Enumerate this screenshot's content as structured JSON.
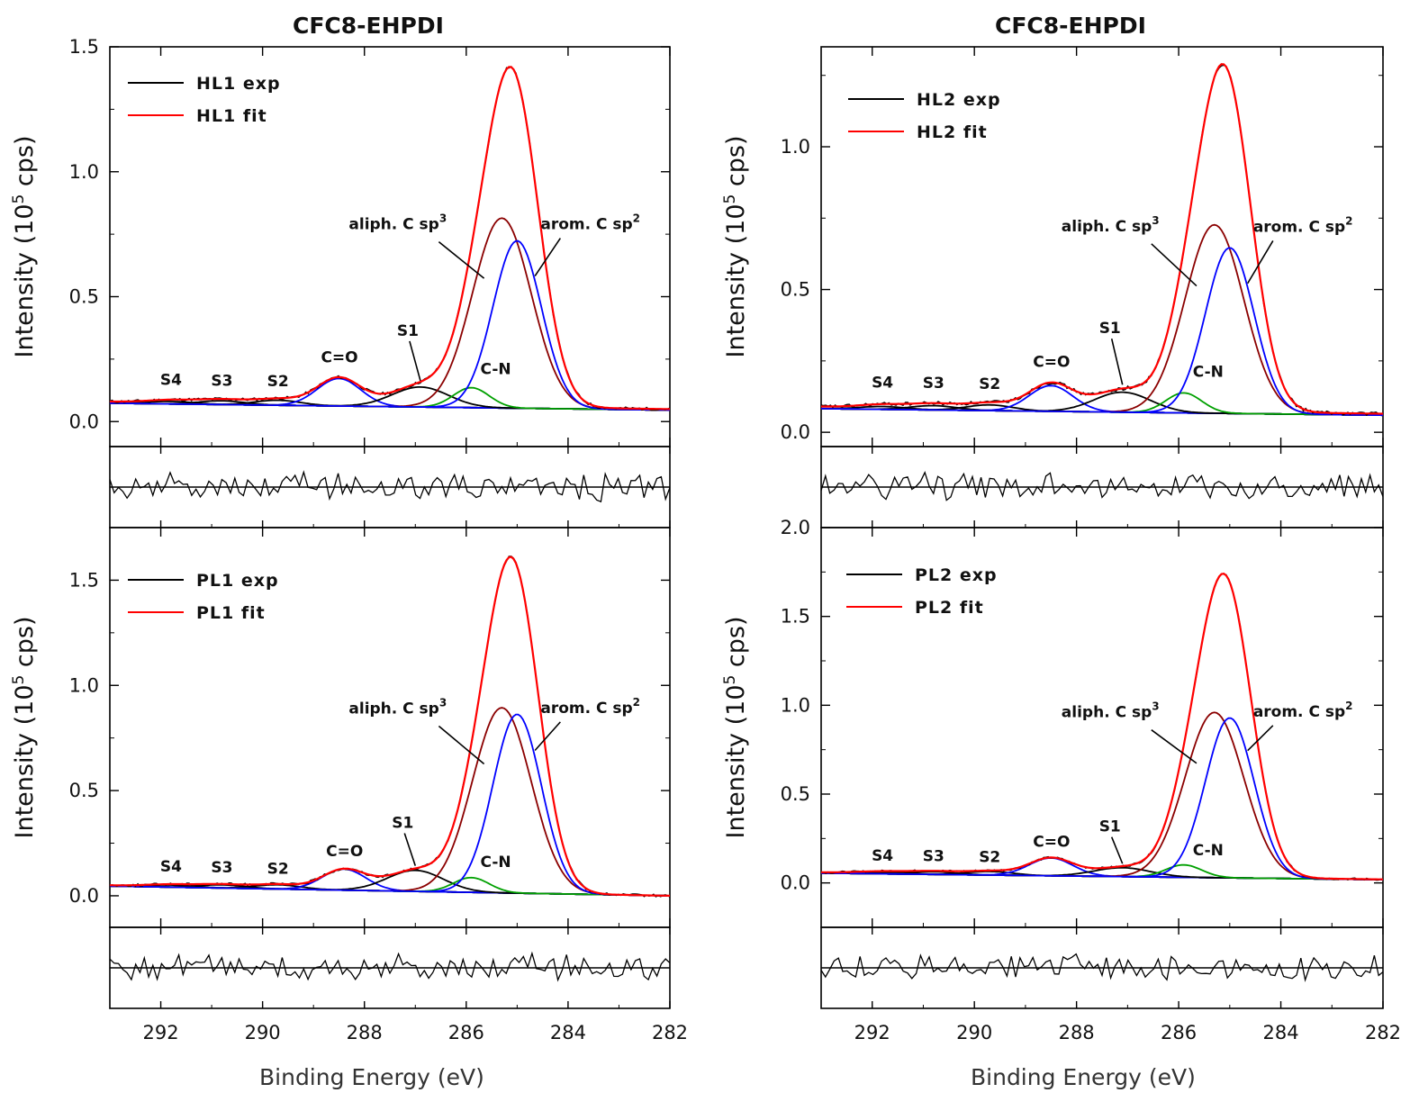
{
  "figure": {
    "titles": [
      "CFC8-EHPDI",
      "CFC8-EHPDI"
    ],
    "xlabel": "Binding Energy (eV)"
  },
  "colors": {
    "exp": "#000000",
    "fit": "#ff0000",
    "aliph": "#8b0000",
    "arom": "#0000ff",
    "cn": "#00a000",
    "minor": "#000000",
    "co": "#0000ff"
  },
  "chart_data": [
    {
      "type": "line",
      "id": "HL1",
      "ylabel": "Intensity (10^5 cps)",
      "xlim": [
        293,
        282
      ],
      "ylim": [
        -0.1,
        1.5
      ],
      "yticks": [
        0.0,
        0.5,
        1.0,
        1.5
      ],
      "xticks": [
        292,
        290,
        288,
        286,
        284,
        282
      ],
      "legend": [
        {
          "label": "HL1 exp",
          "color": "#000000"
        },
        {
          "label": "HL1 fit",
          "color": "#ff0000"
        }
      ],
      "baseline": {
        "start": 0.08,
        "end": 0.05
      },
      "peaks": [
        {
          "name": "S4",
          "label": "S4",
          "center": 291.8,
          "height": 0.01,
          "width": 0.9
        },
        {
          "name": "S3",
          "label": "S3",
          "center": 290.8,
          "height": 0.015,
          "width": 0.9
        },
        {
          "name": "S2",
          "label": "S2",
          "center": 289.7,
          "height": 0.02,
          "width": 0.9
        },
        {
          "name": "C=O",
          "label": "C=O",
          "center": 288.5,
          "height": 0.11,
          "width": 0.85
        },
        {
          "name": "S1",
          "label": "S1",
          "center": 286.9,
          "height": 0.08,
          "width": 1.1
        },
        {
          "name": "C-N",
          "label": "C-N",
          "center": 285.9,
          "height": 0.08,
          "width": 0.7
        },
        {
          "name": "aliph",
          "label": "aliph. C sp3",
          "center": 285.3,
          "height": 0.76,
          "width": 1.15
        },
        {
          "name": "arom",
          "label": "arom. C sp2",
          "center": 285.0,
          "height": 0.67,
          "width": 0.95
        }
      ],
      "fit_peak": 1.42,
      "residual_range": [
        -0.5,
        0.5
      ]
    },
    {
      "type": "line",
      "id": "HL2",
      "ylabel": "Intensity (10^5 cps)",
      "xlim": [
        293,
        282
      ],
      "ylim": [
        -0.05,
        1.35
      ],
      "yticks": [
        0.0,
        0.5,
        1.0
      ],
      "xticks": [
        292,
        290,
        288,
        286,
        284,
        282
      ],
      "legend": [
        {
          "label": "HL2 exp",
          "color": "#000000"
        },
        {
          "label": "HL2 fit",
          "color": "#ff0000"
        }
      ],
      "baseline": {
        "start": 0.09,
        "end": 0.065
      },
      "peaks": [
        {
          "name": "S4",
          "label": "S4",
          "center": 291.8,
          "height": 0.01,
          "width": 0.9
        },
        {
          "name": "S3",
          "label": "S3",
          "center": 290.8,
          "height": 0.015,
          "width": 0.9
        },
        {
          "name": "S2",
          "label": "S2",
          "center": 289.7,
          "height": 0.02,
          "width": 0.9
        },
        {
          "name": "C=O",
          "label": "C=O",
          "center": 288.5,
          "height": 0.09,
          "width": 0.85
        },
        {
          "name": "S1",
          "label": "S1",
          "center": 287.1,
          "height": 0.07,
          "width": 1.1
        },
        {
          "name": "C-N",
          "label": "C-N",
          "center": 285.9,
          "height": 0.07,
          "width": 0.7
        },
        {
          "name": "aliph",
          "label": "aliph. C sp3",
          "center": 285.3,
          "height": 0.66,
          "width": 1.15
        },
        {
          "name": "arom",
          "label": "arom. C sp2",
          "center": 285.0,
          "height": 0.58,
          "width": 0.95
        }
      ],
      "fit_peak": 1.29,
      "residual_range": [
        -0.5,
        0.5
      ]
    },
    {
      "type": "line",
      "id": "PL1",
      "ylabel": "Intensity (10^5 cps)",
      "xlim": [
        293,
        282
      ],
      "ylim": [
        -0.15,
        1.75
      ],
      "yticks": [
        0.0,
        0.5,
        1.0,
        1.5
      ],
      "xticks": [
        292,
        290,
        288,
        286,
        284,
        282
      ],
      "legend": [
        {
          "label": "PL1 exp",
          "color": "#000000"
        },
        {
          "label": "PL1 fit",
          "color": "#ff0000"
        }
      ],
      "baseline": {
        "start": 0.05,
        "end": 0.0
      },
      "peaks": [
        {
          "name": "S4",
          "label": "S4",
          "center": 291.8,
          "height": 0.01,
          "width": 0.9
        },
        {
          "name": "S3",
          "label": "S3",
          "center": 290.8,
          "height": 0.015,
          "width": 0.9
        },
        {
          "name": "S2",
          "label": "S2",
          "center": 289.7,
          "height": 0.02,
          "width": 0.9
        },
        {
          "name": "C=O",
          "label": "C=O",
          "center": 288.4,
          "height": 0.1,
          "width": 0.85
        },
        {
          "name": "S1",
          "label": "S1",
          "center": 287.0,
          "height": 0.1,
          "width": 1.1
        },
        {
          "name": "C-N",
          "label": "C-N",
          "center": 285.9,
          "height": 0.07,
          "width": 0.7
        },
        {
          "name": "aliph",
          "label": "aliph. C sp3",
          "center": 285.3,
          "height": 0.88,
          "width": 1.15
        },
        {
          "name": "arom",
          "label": "arom. C sp2",
          "center": 285.0,
          "height": 0.85,
          "width": 0.95
        }
      ],
      "fit_peak": 1.61,
      "residual_range": [
        -0.5,
        0.5
      ]
    },
    {
      "type": "line",
      "id": "PL2",
      "ylabel": "Intensity (10^5 cps)",
      "xlim": [
        293,
        282
      ],
      "ylim": [
        -0.25,
        2.0
      ],
      "yticks": [
        0.0,
        0.5,
        1.0,
        1.5,
        2.0
      ],
      "xticks": [
        292,
        290,
        288,
        286,
        284,
        282
      ],
      "legend": [
        {
          "label": "PL2 exp",
          "color": "#000000"
        },
        {
          "label": "PL2 fit",
          "color": "#ff0000"
        }
      ],
      "baseline": {
        "start": 0.06,
        "end": 0.02
      },
      "peaks": [
        {
          "name": "S4",
          "label": "S4",
          "center": 291.8,
          "height": 0.01,
          "width": 0.9
        },
        {
          "name": "S3",
          "label": "S3",
          "center": 290.8,
          "height": 0.015,
          "width": 0.9
        },
        {
          "name": "S2",
          "label": "S2",
          "center": 289.7,
          "height": 0.02,
          "width": 0.9
        },
        {
          "name": "C=O",
          "label": "C=O",
          "center": 288.5,
          "height": 0.1,
          "width": 0.85
        },
        {
          "name": "S1",
          "label": "S1",
          "center": 287.1,
          "height": 0.05,
          "width": 1.1
        },
        {
          "name": "C-N",
          "label": "C-N",
          "center": 285.9,
          "height": 0.07,
          "width": 0.7
        },
        {
          "name": "aliph",
          "label": "aliph. C sp3",
          "center": 285.3,
          "height": 0.93,
          "width": 1.15
        },
        {
          "name": "arom",
          "label": "arom. C sp2",
          "center": 285.0,
          "height": 0.9,
          "width": 0.95
        }
      ],
      "fit_peak": 1.74,
      "residual_range": [
        -0.5,
        0.5
      ]
    }
  ]
}
